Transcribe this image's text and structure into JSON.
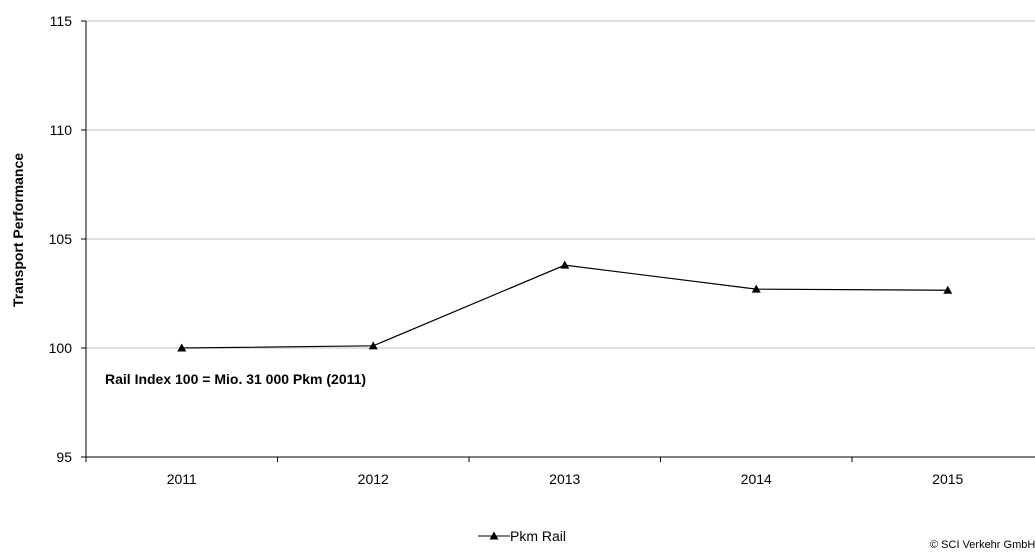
{
  "chart_data": {
    "type": "line",
    "title": "",
    "xlabel": "",
    "ylabel": "Transport Performance",
    "categories": [
      "2011",
      "2012",
      "2013",
      "2014",
      "2015"
    ],
    "series": [
      {
        "name": "Pkm Rail",
        "values": [
          100.0,
          100.1,
          103.8,
          102.7,
          102.65
        ],
        "marker": "triangle",
        "color": "#000000"
      }
    ],
    "ylim": [
      95,
      115
    ],
    "yticks": [
      "95",
      "100",
      "105",
      "110",
      "115"
    ],
    "grid": true,
    "legend": "bottom-center",
    "annotation": "Rail Index 100 = Mio. 31 000 Pkm (2011)",
    "source": "© SCI Verkehr GmbH"
  }
}
